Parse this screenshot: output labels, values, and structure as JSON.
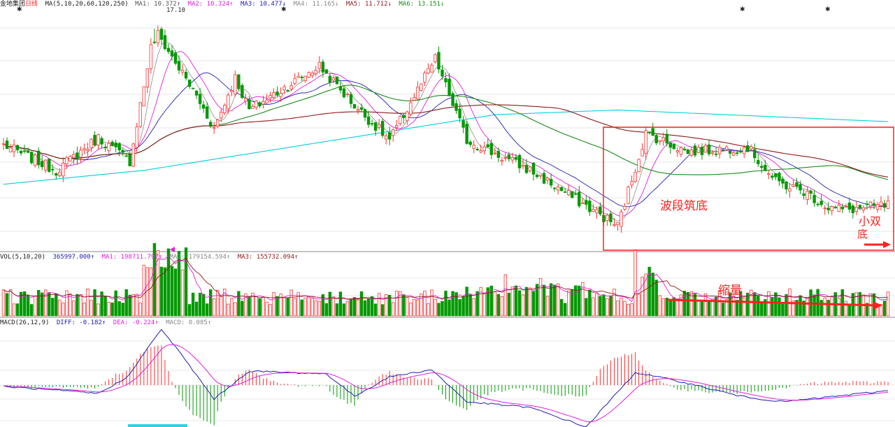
{
  "header": {
    "stock": "金地集团",
    "period": "日线",
    "ma_params": "MA(5,10,20,60,120,250)",
    "ma1": "MA1: 10.372↑",
    "ma2": "MA2: 10.324↑",
    "ma3": "MA3: 10.477↓",
    "ma4": "MA4: 11.165↓",
    "ma5": "MA5: 11.712↓",
    "ma6": "MA6: 13.151↓"
  },
  "price_high_label": "17.10",
  "volume_header": {
    "params": "VOL(5,10,20)",
    "value": "365997.000↑",
    "ma1": "MA1: 198711.797↑",
    "ma2": "MA2: 179154.594↑",
    "ma3": "MA3: 155732.094↑"
  },
  "macd_header": {
    "params": "MACD(26,12,9)",
    "diff": "DIFF: -0.182↑",
    "dea": "DEA: -0.224↑",
    "macd": "MACD: 0.085↑"
  },
  "annotations": {
    "wave_bottom": "波段筑底",
    "small_double": "小双",
    "bottom_char": "底",
    "shrink_volume": "缩量"
  },
  "colors": {
    "up": "#ff3030",
    "down": "#009900",
    "ma1": "#555555",
    "ma2": "#e020e0",
    "ma3": "#2020b0",
    "ma4": "#999999",
    "ma5": "#8b1a1a",
    "ma6": "#1a8a1a",
    "ma7": "#00d0e0",
    "annotation": "#ff2020"
  },
  "chart_data": {
    "type": "candlestick",
    "panels": [
      "price",
      "volume",
      "macd"
    ],
    "price_anchors": {
      "x_index": [
        0,
        15,
        27,
        36,
        43,
        55,
        60,
        66,
        70,
        90,
        100,
        110,
        123,
        132,
        150,
        175,
        183,
        195,
        212,
        220,
        228,
        235,
        240,
        252
      ],
      "close": [
        12.1,
        11.0,
        12.4,
        11.4,
        17.1,
        14.2,
        12.8,
        15.0,
        13.6,
        15.5,
        13.8,
        12.3,
        15.8,
        12.3,
        11.0,
        8.6,
        12.6,
        11.8,
        12.0,
        10.5,
        10.1,
        9.4,
        9.3,
        9.5
      ]
    },
    "macd_anchors": {
      "x_index": [
        0,
        27,
        35,
        45,
        50,
        60,
        70,
        92,
        100,
        110,
        122,
        132,
        150,
        166,
        180,
        192,
        210,
        222,
        252
      ],
      "diff": [
        -0.05,
        -0.3,
        0.25,
        2.0,
        1.2,
        -0.5,
        0.5,
        0.4,
        -0.4,
        0.3,
        0.55,
        -0.6,
        -0.8,
        -1.5,
        0.45,
        0.15,
        -0.4,
        -0.6,
        -0.2
      ]
    },
    "n_bars": 253,
    "ma_periods": [
      5,
      10,
      20,
      60,
      120,
      250
    ],
    "last": {
      "price": 9.5,
      "volume": 365997.0,
      "vol_ma5": 198711.797,
      "vol_ma10": 179154.594,
      "vol_ma20": 155732.094,
      "diff": -0.182,
      "dea": -0.224,
      "macd": 0.085
    },
    "price_high": 17.1,
    "ylim_price": [
      7.8,
      17.8
    ]
  }
}
